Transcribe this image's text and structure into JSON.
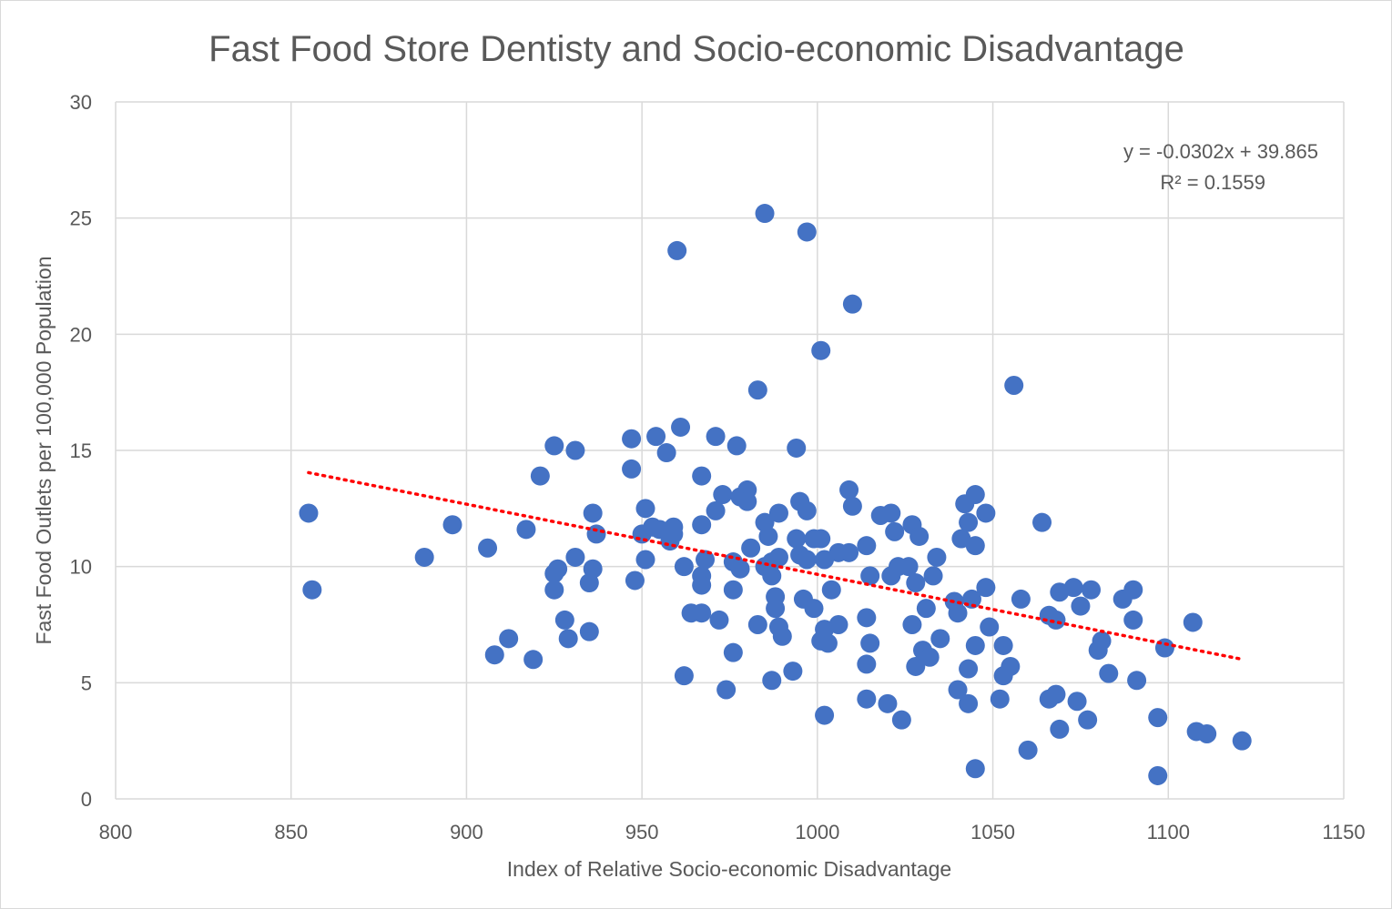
{
  "chart_data": {
    "type": "scatter",
    "title": "Fast Food Store Dentisty and Socio-economic Disadvantage",
    "xlabel": "Index of Relative Socio-economic Disadvantage",
    "ylabel": "Fast Food Outlets per 100,000 Population",
    "xlim": [
      800,
      1150
    ],
    "ylim": [
      0,
      30
    ],
    "xticks": [
      800,
      850,
      900,
      950,
      1000,
      1050,
      1100,
      1150
    ],
    "yticks": [
      0,
      5,
      10,
      15,
      20,
      25,
      30
    ],
    "grid": true,
    "legend": "none",
    "colors": {
      "points": "#4472c4",
      "trendline": "#ff0000",
      "grid": "#d9d9d9",
      "text": "#595959"
    },
    "trendline": {
      "type": "linear",
      "slope": -0.0302,
      "intercept": 39.865,
      "x_range": [
        855,
        1121
      ],
      "equation_label": "y = -0.0302x + 39.865",
      "r2_label": "R² = 0.1559"
    },
    "series": [
      {
        "points": [
          [
            855,
            12.3
          ],
          [
            856,
            9.0
          ],
          [
            888,
            10.4
          ],
          [
            896,
            11.8
          ],
          [
            906,
            10.8
          ],
          [
            908,
            6.2
          ],
          [
            912,
            6.9
          ],
          [
            917,
            11.6
          ],
          [
            919,
            6.0
          ],
          [
            921,
            13.9
          ],
          [
            925,
            15.2
          ],
          [
            925,
            9.7
          ],
          [
            925,
            9.0
          ],
          [
            926,
            9.9
          ],
          [
            928,
            7.7
          ],
          [
            929,
            6.9
          ],
          [
            931,
            15.0
          ],
          [
            931,
            10.4
          ],
          [
            935,
            9.3
          ],
          [
            935,
            7.2
          ],
          [
            936,
            12.3
          ],
          [
            936,
            9.9
          ],
          [
            937,
            11.4
          ],
          [
            947,
            15.5
          ],
          [
            947,
            14.2
          ],
          [
            948,
            9.4
          ],
          [
            950,
            11.4
          ],
          [
            951,
            12.5
          ],
          [
            951,
            10.3
          ],
          [
            953,
            11.7
          ],
          [
            954,
            15.6
          ],
          [
            955,
            11.6
          ],
          [
            957,
            14.9
          ],
          [
            958,
            11.1
          ],
          [
            959,
            11.4
          ],
          [
            959,
            11.7
          ],
          [
            960,
            23.6
          ],
          [
            961,
            16.0
          ],
          [
            962,
            10.0
          ],
          [
            962,
            5.3
          ],
          [
            964,
            8.0
          ],
          [
            967,
            13.9
          ],
          [
            967,
            11.8
          ],
          [
            967,
            9.6
          ],
          [
            967,
            9.2
          ],
          [
            967,
            8.0
          ],
          [
            968,
            10.3
          ],
          [
            971,
            15.6
          ],
          [
            971,
            12.4
          ],
          [
            972,
            7.7
          ],
          [
            973,
            13.1
          ],
          [
            974,
            4.7
          ],
          [
            976,
            10.2
          ],
          [
            976,
            9.0
          ],
          [
            976,
            6.3
          ],
          [
            977,
            15.2
          ],
          [
            978,
            13.0
          ],
          [
            978,
            9.9
          ],
          [
            980,
            13.3
          ],
          [
            980,
            12.8
          ],
          [
            981,
            10.8
          ],
          [
            983,
            17.6
          ],
          [
            983,
            7.5
          ],
          [
            985,
            25.2
          ],
          [
            985,
            11.9
          ],
          [
            985,
            10.0
          ],
          [
            986,
            11.3
          ],
          [
            987,
            10.2
          ],
          [
            987,
            9.6
          ],
          [
            987,
            5.1
          ],
          [
            988,
            8.7
          ],
          [
            988,
            8.2
          ],
          [
            989,
            7.4
          ],
          [
            989,
            12.3
          ],
          [
            989,
            10.4
          ],
          [
            990,
            7.0
          ],
          [
            993,
            5.5
          ],
          [
            994,
            15.1
          ],
          [
            994,
            11.2
          ],
          [
            995,
            12.8
          ],
          [
            995,
            10.5
          ],
          [
            996,
            8.6
          ],
          [
            997,
            24.4
          ],
          [
            997,
            12.4
          ],
          [
            997,
            10.3
          ],
          [
            999,
            11.2
          ],
          [
            999,
            8.2
          ],
          [
            1001,
            19.3
          ],
          [
            1001,
            11.2
          ],
          [
            1001,
            6.8
          ],
          [
            1002,
            10.3
          ],
          [
            1002,
            7.3
          ],
          [
            1002,
            3.6
          ],
          [
            1003,
            6.7
          ],
          [
            1004,
            9.0
          ],
          [
            1006,
            10.6
          ],
          [
            1006,
            7.5
          ],
          [
            1009,
            13.3
          ],
          [
            1009,
            10.6
          ],
          [
            1010,
            21.3
          ],
          [
            1010,
            12.6
          ],
          [
            1014,
            10.9
          ],
          [
            1014,
            7.8
          ],
          [
            1014,
            5.8
          ],
          [
            1014,
            4.3
          ],
          [
            1015,
            9.6
          ],
          [
            1015,
            6.7
          ],
          [
            1018,
            12.2
          ],
          [
            1020,
            4.1
          ],
          [
            1021,
            12.3
          ],
          [
            1021,
            9.6
          ],
          [
            1022,
            11.5
          ],
          [
            1023,
            10.0
          ],
          [
            1024,
            3.4
          ],
          [
            1026,
            10.0
          ],
          [
            1027,
            11.8
          ],
          [
            1027,
            7.5
          ],
          [
            1028,
            9.3
          ],
          [
            1028,
            5.7
          ],
          [
            1029,
            11.3
          ],
          [
            1030,
            6.4
          ],
          [
            1031,
            8.2
          ],
          [
            1032,
            6.1
          ],
          [
            1033,
            9.6
          ],
          [
            1034,
            10.4
          ],
          [
            1035,
            6.9
          ],
          [
            1039,
            8.5
          ],
          [
            1040,
            8.0
          ],
          [
            1040,
            4.7
          ],
          [
            1041,
            11.2
          ],
          [
            1042,
            12.7
          ],
          [
            1043,
            11.9
          ],
          [
            1043,
            5.6
          ],
          [
            1043,
            4.1
          ],
          [
            1044,
            8.6
          ],
          [
            1045,
            13.1
          ],
          [
            1045,
            10.9
          ],
          [
            1045,
            6.6
          ],
          [
            1045,
            1.3
          ],
          [
            1048,
            12.3
          ],
          [
            1048,
            9.1
          ],
          [
            1049,
            7.4
          ],
          [
            1052,
            4.3
          ],
          [
            1053,
            6.6
          ],
          [
            1053,
            5.3
          ],
          [
            1055,
            5.7
          ],
          [
            1056,
            17.8
          ],
          [
            1058,
            8.6
          ],
          [
            1060,
            2.1
          ],
          [
            1064,
            11.9
          ],
          [
            1066,
            7.9
          ],
          [
            1066,
            4.3
          ],
          [
            1068,
            4.5
          ],
          [
            1068,
            7.7
          ],
          [
            1069,
            8.9
          ],
          [
            1069,
            3.0
          ],
          [
            1073,
            9.1
          ],
          [
            1074,
            4.2
          ],
          [
            1075,
            8.3
          ],
          [
            1077,
            3.4
          ],
          [
            1078,
            9.0
          ],
          [
            1080,
            6.4
          ],
          [
            1081,
            6.8
          ],
          [
            1083,
            5.4
          ],
          [
            1087,
            8.6
          ],
          [
            1090,
            9.0
          ],
          [
            1090,
            7.7
          ],
          [
            1091,
            5.1
          ],
          [
            1097,
            3.5
          ],
          [
            1097,
            1.0
          ],
          [
            1099,
            6.5
          ],
          [
            1107,
            7.6
          ],
          [
            1108,
            2.9
          ],
          [
            1111,
            2.8
          ],
          [
            1121,
            2.5
          ]
        ]
      }
    ]
  }
}
